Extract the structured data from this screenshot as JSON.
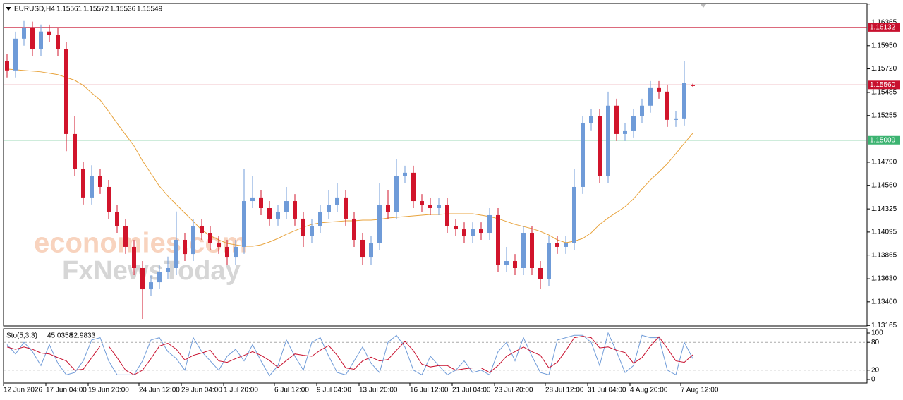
{
  "chart_data": {
    "type": "candlestick",
    "symbol": "EURUSD,H4",
    "color_up": "#6f9bd8",
    "color_down": "#d1142b",
    "ylim": [
      1.1316,
      1.1637
    ],
    "yticks": [
      1.16365,
      {
        "value": 1.1595,
        "label": "1.15950"
      },
      {
        "value": 1.1572,
        "label": "1.15720"
      },
      1.15485,
      1.15255,
      {
        "value": 1.1479,
        "label": "1.14790"
      },
      {
        "value": 1.1456,
        "label": "1.14560"
      },
      1.14325,
      1.14095,
      1.13865,
      {
        "value": 1.1363,
        "label": "1.13630"
      },
      {
        "value": 1.134,
        "label": "1.13400"
      },
      1.13165
    ],
    "levels": [
      {
        "value": 1.16132,
        "color": "#c8102e"
      },
      {
        "value": 1.1556,
        "label": "1.15560",
        "color": "#c8102e"
      },
      {
        "value": 1.15009,
        "color": "#3cb371"
      }
    ],
    "categories": [
      "12 Jun 2026",
      null,
      null,
      null,
      null,
      "17 Jun 04:00",
      null,
      null,
      null,
      null,
      "19 Jun 20:00",
      null,
      null,
      null,
      null,
      null,
      "24 Jun 12:00",
      null,
      null,
      null,
      null,
      "29 Jun 04:00",
      null,
      null,
      null,
      null,
      "1 Jul 20:00",
      null,
      null,
      null,
      null,
      null,
      "6 Jul 12:00",
      null,
      null,
      null,
      null,
      "9 Jul 04:00",
      null,
      null,
      null,
      null,
      "13 Jul 20:00",
      null,
      null,
      null,
      null,
      null,
      "16 Jul 12:00",
      null,
      null,
      null,
      null,
      "21 Jul 04:00",
      null,
      null,
      null,
      null,
      "23 Jul 20:00",
      null,
      null,
      null,
      null,
      null,
      "28 Jul 12:00",
      null,
      null,
      null,
      null,
      "31 Jul 04:00",
      null,
      null,
      null,
      null,
      "4 Aug 20:00",
      null,
      null,
      null,
      null,
      null,
      "7 Aug 12:00",
      null
    ],
    "open": [
      1.158,
      1.15704,
      1.1602,
      1.16126,
      1.15915,
      1.16091,
      1.16056,
      1.15915,
      1.15071,
      1.1472,
      1.14439,
      1.1465,
      1.14544,
      1.14298,
      1.14157,
      1.13947,
      1.13736,
      1.13525,
      1.13595,
      1.137,
      1.13736,
      1.14017,
      1.13876,
      1.14157,
      1.14087,
      1.13982,
      1.13947,
      1.13841,
      1.13947,
      1.14403,
      1.14439,
      1.14333,
      1.14228,
      1.14298,
      1.14403,
      1.14228,
      1.14052,
      1.14157,
      1.14298,
      1.14368,
      1.14439,
      1.14228,
      1.14017,
      1.13841,
      1.13982,
      1.14368,
      1.14298,
      1.1465,
      1.14685,
      1.14403,
      1.14368,
      1.14333,
      1.14368,
      1.14157,
      1.14122,
      1.14052,
      1.14122,
      1.14087,
      1.14263,
      1.13771,
      1.13806,
      1.13736,
      1.14087,
      1.13736,
      1.1363,
      1.13982,
      1.13947,
      1.13982,
      1.14544,
      1.15177,
      1.15247,
      1.1465,
      1.15353,
      1.15071,
      1.15106,
      1.15247,
      1.15353,
      1.15528,
      1.15493,
      1.15212,
      1.15226,
      1.15561
    ],
    "high": [
      1.1587,
      1.1609,
      1.16196,
      1.1619,
      1.16161,
      1.1616,
      1.16126,
      1.15985,
      1.1525,
      1.1479,
      1.1476,
      1.1472,
      1.14614,
      1.14368,
      1.14227,
      1.14017,
      1.13806,
      1.13665,
      1.1377,
      1.1385,
      1.143,
      1.14087,
      1.14227,
      1.14227,
      1.14157,
      1.14052,
      1.14017,
      1.14017,
      1.1472,
      1.1465,
      1.14509,
      1.14403,
      1.14368,
      1.14544,
      1.14473,
      1.14298,
      1.14227,
      1.14368,
      1.14509,
      1.1458,
      1.14509,
      1.14298,
      1.14087,
      1.14052,
      1.1458,
      1.14509,
      1.1482,
      1.14755,
      1.14755,
      1.14473,
      1.14438,
      1.14438,
      1.14438,
      1.14227,
      1.14192,
      1.14192,
      1.14192,
      1.14333,
      1.14333,
      1.13947,
      1.13876,
      1.14157,
      1.14157,
      1.13806,
      1.14052,
      1.14052,
      1.14052,
      1.1472,
      1.15247,
      1.15317,
      1.15317,
      1.15493,
      1.15423,
      1.15176,
      1.15317,
      1.15423,
      1.15598,
      1.15598,
      1.15563,
      1.15296,
      1.158,
      1.15572
    ],
    "low": [
      1.15634,
      1.15634,
      1.1595,
      1.15845,
      1.15845,
      1.15986,
      1.15845,
      1.149,
      1.1465,
      1.14369,
      1.14369,
      1.14474,
      1.14228,
      1.14087,
      1.13877,
      1.13666,
      1.1323,
      1.13455,
      1.13525,
      1.1363,
      1.13666,
      1.13806,
      1.13806,
      1.14017,
      1.13912,
      1.13877,
      1.13771,
      1.13771,
      1.13877,
      1.14333,
      1.14263,
      1.14158,
      1.14158,
      1.14228,
      1.14158,
      1.13947,
      1.13982,
      1.14087,
      1.14228,
      1.14298,
      1.14158,
      1.13947,
      1.13771,
      1.13771,
      1.13912,
      1.14228,
      1.14228,
      1.1458,
      1.14333,
      1.14298,
      1.14263,
      1.14263,
      1.14087,
      1.14052,
      1.13982,
      1.13982,
      1.14017,
      1.14017,
      1.13701,
      1.13701,
      1.13666,
      1.13666,
      1.13666,
      1.1353,
      1.1356,
      1.13877,
      1.13877,
      1.13912,
      1.14474,
      1.15107,
      1.1458,
      1.1458,
      1.15001,
      1.15001,
      1.15036,
      1.15177,
      1.15283,
      1.15423,
      1.15142,
      1.15142,
      1.15156,
      1.15536
    ],
    "close": [
      1.15704,
      1.1602,
      1.16126,
      1.15915,
      1.16091,
      1.16056,
      1.15915,
      1.15071,
      1.1472,
      1.14439,
      1.1465,
      1.14544,
      1.14298,
      1.14157,
      1.13947,
      1.13736,
      1.13525,
      1.13595,
      1.137,
      1.13736,
      1.14017,
      1.13876,
      1.14157,
      1.14087,
      1.13982,
      1.13947,
      1.13841,
      1.13947,
      1.14403,
      1.14439,
      1.14333,
      1.14228,
      1.14298,
      1.14403,
      1.14228,
      1.14052,
      1.14157,
      1.14298,
      1.14368,
      1.14439,
      1.14228,
      1.14017,
      1.13841,
      1.13982,
      1.14368,
      1.14298,
      1.1465,
      1.14685,
      1.14403,
      1.14368,
      1.14333,
      1.14368,
      1.14157,
      1.14122,
      1.14052,
      1.14122,
      1.14087,
      1.14263,
      1.13771,
      1.13806,
      1.13736,
      1.14087,
      1.13736,
      1.1363,
      1.13982,
      1.13947,
      1.13982,
      1.14544,
      1.15177,
      1.15247,
      1.1465,
      1.15353,
      1.15071,
      1.15106,
      1.15247,
      1.15353,
      1.15528,
      1.15493,
      1.15212,
      1.15226,
      1.15578,
      1.15549
    ],
    "ma": {
      "color": "#e8a33c",
      "values": [
        1.15718,
        1.15711,
        1.15704,
        1.15697,
        1.1569,
        1.15676,
        1.15662,
        1.15634,
        1.15606,
        1.15556,
        1.15479,
        1.15409,
        1.15296,
        1.15177,
        1.15064,
        1.14952,
        1.14804,
        1.14678,
        1.14551,
        1.14453,
        1.14368,
        1.14284,
        1.142,
        1.14115,
        1.14059,
        1.14017,
        1.13982,
        1.13968,
        1.13954,
        1.13954,
        1.13968,
        1.13996,
        1.14031,
        1.14073,
        1.14108,
        1.14143,
        1.14171,
        1.14186,
        1.14193,
        1.142,
        1.14207,
        1.14207,
        1.14214,
        1.14214,
        1.14221,
        1.14235,
        1.14242,
        1.14249,
        1.14256,
        1.14263,
        1.1427,
        1.1427,
        1.14277,
        1.14277,
        1.14277,
        1.14277,
        1.14263,
        1.14249,
        1.14228,
        1.142,
        1.14171,
        1.1415,
        1.14129,
        1.14101,
        1.14066,
        1.14017,
        1.13989,
        1.14003,
        1.14031,
        1.14087,
        1.14171,
        1.14235,
        1.14291,
        1.14347,
        1.14425,
        1.14523,
        1.14614,
        1.14692,
        1.14776,
        1.14875,
        1.1498,
        1.15078
      ]
    },
    "watermark": [
      "economies.com",
      "FxNewsToday"
    ],
    "stochastic": {
      "title": "Sto(5,3,3)",
      "ylim": [
        0,
        100
      ],
      "yticks": [
        100,
        80,
        20,
        0
      ],
      "levels": [
        80,
        20
      ],
      "series": [
        {
          "color": "#6f9bd8",
          "values": [
            75,
            55,
            80,
            60,
            30,
            75,
            35,
            10,
            15,
            40,
            85,
            90,
            40,
            10,
            10,
            10,
            40,
            85,
            90,
            60,
            45,
            20,
            90,
            60,
            40,
            20,
            50,
            65,
            40,
            75,
            40,
            8,
            30,
            85,
            50,
            20,
            80,
            90,
            50,
            15,
            10,
            40,
            70,
            35,
            15,
            80,
            95,
            70,
            20,
            10,
            50,
            30,
            10,
            20,
            40,
            15,
            20,
            10,
            60,
            80,
            40,
            90,
            50,
            15,
            10,
            85,
            90,
            95,
            95,
            80,
            30,
            100,
            60,
            15,
            30,
            95,
            90,
            90,
            20,
            10,
            80,
            45.0358
          ]
        },
        {
          "color": "#c8102e",
          "values": [
            70,
            65,
            70,
            65,
            57,
            55,
            47,
            40,
            20,
            22,
            47,
            72,
            72,
            47,
            20,
            10,
            20,
            45,
            72,
            78,
            65,
            42,
            52,
            57,
            63,
            40,
            37,
            45,
            52,
            60,
            52,
            41,
            26,
            41,
            55,
            52,
            50,
            63,
            73,
            52,
            25,
            22,
            40,
            48,
            40,
            43,
            63,
            82,
            62,
            33,
            27,
            30,
            30,
            20,
            23,
            25,
            25,
            15,
            30,
            50,
            60,
            70,
            60,
            52,
            25,
            37,
            62,
            90,
            93,
            90,
            68,
            70,
            63,
            58,
            35,
            47,
            72,
            92,
            67,
            40,
            37,
            52.9833
          ]
        }
      ]
    }
  }
}
